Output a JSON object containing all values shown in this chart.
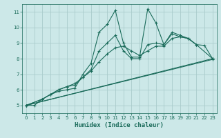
{
  "xlabel": "Humidex (Indice chaleur)",
  "bg_color": "#cce8e8",
  "grid_color": "#aacccc",
  "line_color": "#1a6b5a",
  "xlim": [
    -0.5,
    23.5
  ],
  "ylim": [
    4.5,
    11.5
  ],
  "xticks": [
    0,
    1,
    2,
    3,
    4,
    5,
    6,
    7,
    8,
    9,
    10,
    11,
    12,
    13,
    14,
    15,
    16,
    17,
    18,
    19,
    20,
    21,
    22,
    23
  ],
  "yticks": [
    5,
    6,
    7,
    8,
    9,
    10,
    11
  ],
  "series": [
    {
      "x": [
        0,
        1,
        2,
        3,
        4,
        5,
        6,
        7,
        8,
        9,
        10,
        11,
        12,
        13,
        14,
        15,
        16,
        17,
        18,
        19,
        20,
        21
      ],
      "y": [
        5,
        5,
        5.4,
        5.7,
        5.9,
        6.0,
        6.1,
        7.0,
        7.7,
        9.7,
        10.2,
        11.1,
        9.0,
        8.1,
        8.1,
        11.2,
        10.3,
        8.9,
        9.7,
        9.5,
        9.3,
        8.9
      ]
    },
    {
      "x": [
        0,
        2,
        3,
        4,
        5,
        6,
        7,
        8,
        9,
        10,
        11,
        12,
        13,
        14,
        15,
        16,
        17,
        18,
        19,
        20,
        21,
        22,
        23
      ],
      "y": [
        5,
        5.4,
        5.7,
        6.0,
        6.2,
        6.3,
        6.8,
        7.3,
        8.5,
        9.0,
        9.5,
        8.5,
        8.0,
        8.0,
        8.9,
        9.0,
        8.9,
        9.6,
        9.4,
        9.3,
        8.9,
        8.85,
        8.0
      ]
    },
    {
      "x": [
        0,
        23
      ],
      "y": [
        5,
        8.0
      ]
    },
    {
      "x": [
        0,
        2,
        3,
        4,
        5,
        6,
        7,
        8,
        9,
        10,
        11,
        12,
        13,
        14,
        15,
        16,
        17,
        18,
        19,
        20,
        21,
        23
      ],
      "y": [
        5,
        5.4,
        5.7,
        6.0,
        6.2,
        6.4,
        6.8,
        7.2,
        7.8,
        8.3,
        8.7,
        8.8,
        8.5,
        8.2,
        8.5,
        8.8,
        8.8,
        9.3,
        9.4,
        9.3,
        8.9,
        8.0
      ]
    },
    {
      "x": [
        0,
        23
      ],
      "y": [
        5,
        7.95
      ]
    }
  ]
}
